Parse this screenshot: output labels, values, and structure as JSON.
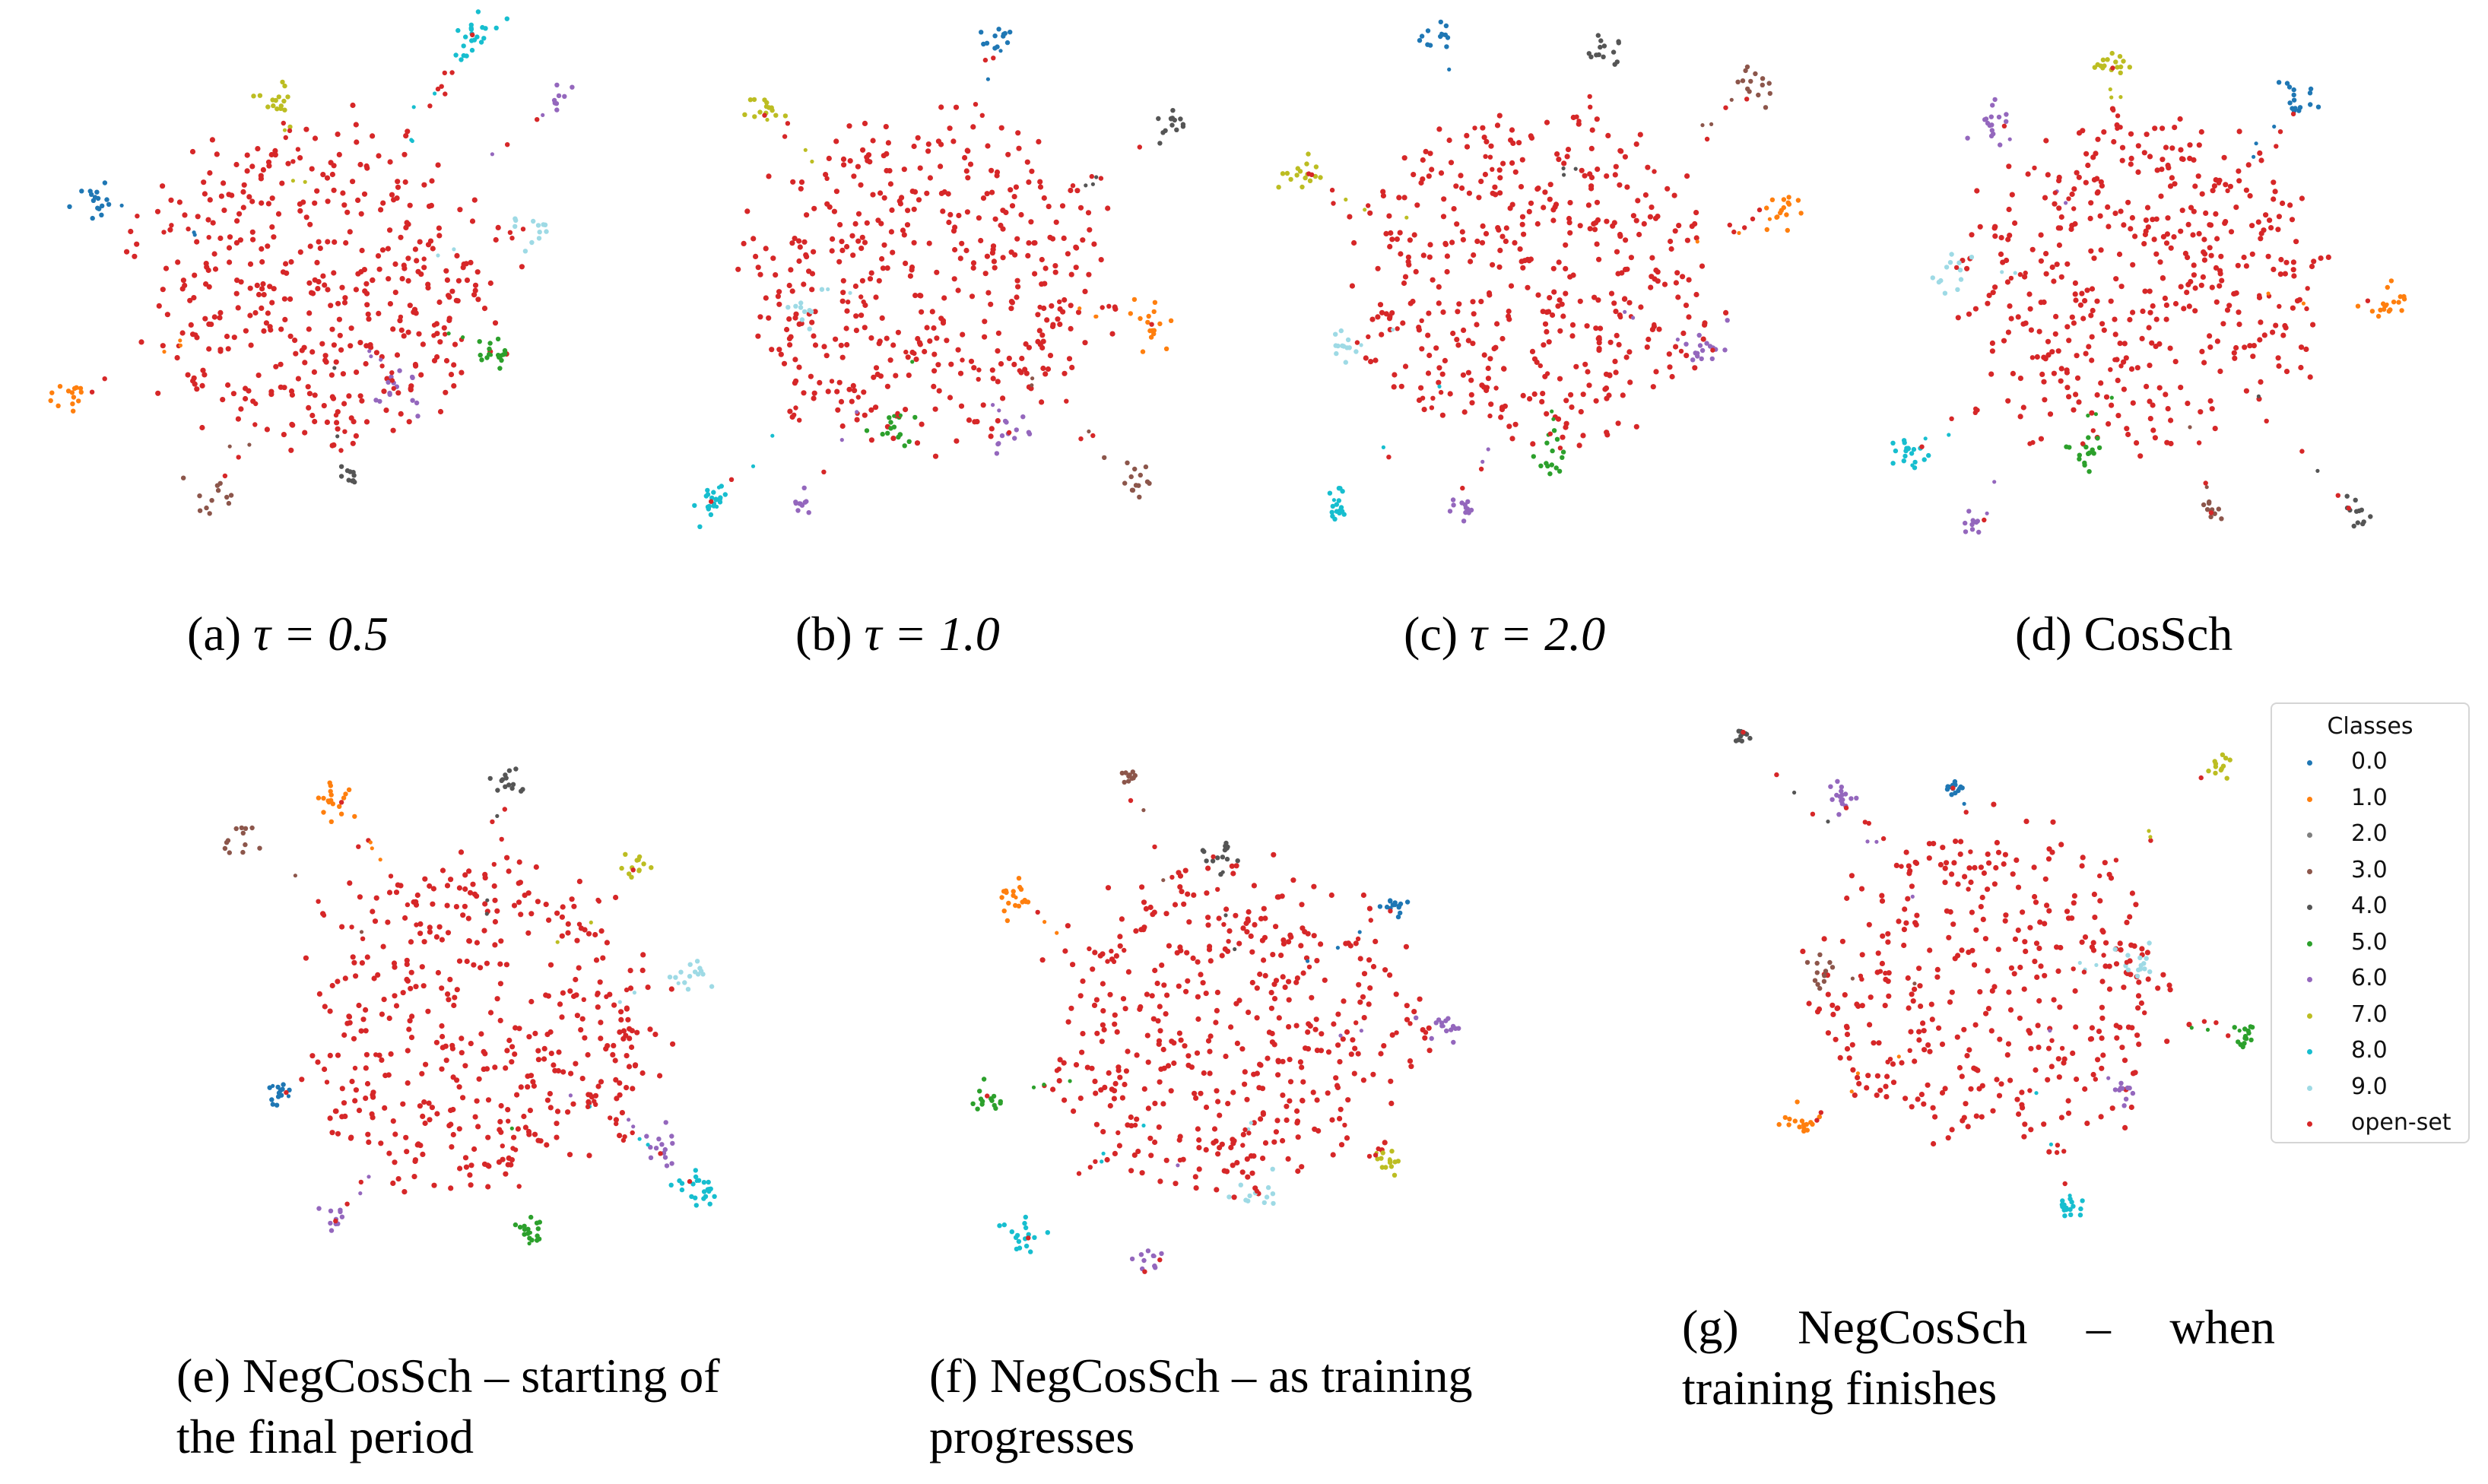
{
  "captions": {
    "a": {
      "prefix": "(a) ",
      "expr": "τ = 0.5"
    },
    "b": {
      "prefix": "(b) ",
      "expr": "τ = 1.0"
    },
    "c": {
      "prefix": "(c) ",
      "expr": "τ = 2.0"
    },
    "d": {
      "prefix": "(d) CosSch",
      "expr": ""
    },
    "e": {
      "line1": "(e) NegCosSch – starting of",
      "line2": "the final period"
    },
    "f": {
      "line1": "(f) NegCosSch – as training",
      "line2": "progresses"
    },
    "g": {
      "line1": "(g) NegCosSch – when",
      "line2": "training finishes"
    }
  },
  "legend": {
    "title": "Classes",
    "items": [
      {
        "label": "0.0",
        "color": "#1f77b4"
      },
      {
        "label": "1.0",
        "color": "#ff7f0e"
      },
      {
        "label": "2.0",
        "color": "#7f7f7f"
      },
      {
        "label": "3.0",
        "color": "#8c564b"
      },
      {
        "label": "4.0",
        "color": "#555555"
      },
      {
        "label": "5.0",
        "color": "#2ca02c"
      },
      {
        "label": "6.0",
        "color": "#9467bd"
      },
      {
        "label": "7.0",
        "color": "#bcbd22"
      },
      {
        "label": "8.0",
        "color": "#17becf"
      },
      {
        "label": "9.0",
        "color": "#9edae5"
      },
      {
        "label": "open-set",
        "color": "#d62728"
      }
    ]
  },
  "chart_data": [
    {
      "type": "scatter",
      "id": "a",
      "openset_count": 420,
      "clusters": [
        {
          "cls": "8.0",
          "x": 0.8,
          "y": 0.03,
          "spread": 0.035,
          "n": 22
        },
        {
          "cls": "7.0",
          "x": 0.42,
          "y": 0.15,
          "spread": 0.035,
          "n": 16
        },
        {
          "cls": "6.0",
          "x": 0.96,
          "y": 0.15,
          "spread": 0.02,
          "n": 8
        },
        {
          "cls": "0.0",
          "x": 0.07,
          "y": 0.34,
          "spread": 0.03,
          "n": 16
        },
        {
          "cls": "9.0",
          "x": 0.92,
          "y": 0.4,
          "spread": 0.035,
          "n": 12
        },
        {
          "cls": "5.0",
          "x": 0.83,
          "y": 0.64,
          "spread": 0.03,
          "n": 16
        },
        {
          "cls": "1.0",
          "x": 0.02,
          "y": 0.72,
          "spread": 0.03,
          "n": 14
        },
        {
          "cls": "6.0",
          "x": 0.66,
          "y": 0.72,
          "spread": 0.04,
          "n": 14
        },
        {
          "cls": "3.0",
          "x": 0.3,
          "y": 0.92,
          "spread": 0.04,
          "n": 12
        },
        {
          "cls": "4.0",
          "x": 0.56,
          "y": 0.87,
          "spread": 0.02,
          "n": 10
        }
      ]
    },
    {
      "type": "scatter",
      "id": "b",
      "openset_count": 420,
      "clusters": [
        {
          "cls": "0.0",
          "x": 0.64,
          "y": 0.03,
          "spread": 0.02,
          "n": 12
        },
        {
          "cls": "7.0",
          "x": 0.18,
          "y": 0.16,
          "spread": 0.03,
          "n": 14
        },
        {
          "cls": "4.0",
          "x": 0.97,
          "y": 0.2,
          "spread": 0.03,
          "n": 14
        },
        {
          "cls": "9.0",
          "x": 0.26,
          "y": 0.55,
          "spread": 0.03,
          "n": 10
        },
        {
          "cls": "1.0",
          "x": 0.93,
          "y": 0.58,
          "spread": 0.035,
          "n": 16
        },
        {
          "cls": "5.0",
          "x": 0.44,
          "y": 0.78,
          "spread": 0.03,
          "n": 14
        },
        {
          "cls": "6.0",
          "x": 0.66,
          "y": 0.8,
          "spread": 0.03,
          "n": 12
        },
        {
          "cls": "3.0",
          "x": 0.89,
          "y": 0.87,
          "spread": 0.04,
          "n": 14
        },
        {
          "cls": "8.0",
          "x": 0.08,
          "y": 0.93,
          "spread": 0.035,
          "n": 20
        },
        {
          "cls": "6.0",
          "x": 0.26,
          "y": 0.93,
          "spread": 0.02,
          "n": 10
        }
      ]
    },
    {
      "type": "scatter",
      "id": "c",
      "openset_count": 420,
      "clusters": [
        {
          "cls": "0.0",
          "x": 0.31,
          "y": 0.03,
          "spread": 0.025,
          "n": 12
        },
        {
          "cls": "4.0",
          "x": 0.63,
          "y": 0.05,
          "spread": 0.03,
          "n": 14
        },
        {
          "cls": "3.0",
          "x": 0.92,
          "y": 0.13,
          "spread": 0.04,
          "n": 14
        },
        {
          "cls": "7.0",
          "x": 0.04,
          "y": 0.3,
          "spread": 0.035,
          "n": 16
        },
        {
          "cls": "1.0",
          "x": 0.97,
          "y": 0.37,
          "spread": 0.035,
          "n": 16
        },
        {
          "cls": "9.0",
          "x": 0.13,
          "y": 0.62,
          "spread": 0.03,
          "n": 12
        },
        {
          "cls": "6.0",
          "x": 0.83,
          "y": 0.63,
          "spread": 0.035,
          "n": 16
        },
        {
          "cls": "5.0",
          "x": 0.53,
          "y": 0.84,
          "spread": 0.03,
          "n": 14
        },
        {
          "cls": "8.0",
          "x": 0.11,
          "y": 0.94,
          "spread": 0.03,
          "n": 16
        },
        {
          "cls": "6.0",
          "x": 0.36,
          "y": 0.94,
          "spread": 0.025,
          "n": 12
        }
      ]
    },
    {
      "type": "scatter",
      "id": "d",
      "openset_count": 420,
      "clusters": [
        {
          "cls": "7.0",
          "x": 0.43,
          "y": 0.08,
          "spread": 0.03,
          "n": 16
        },
        {
          "cls": "6.0",
          "x": 0.21,
          "y": 0.19,
          "spread": 0.035,
          "n": 16
        },
        {
          "cls": "0.0",
          "x": 0.8,
          "y": 0.15,
          "spread": 0.03,
          "n": 16
        },
        {
          "cls": "9.0",
          "x": 0.13,
          "y": 0.48,
          "spread": 0.03,
          "n": 12
        },
        {
          "cls": "1.0",
          "x": 0.97,
          "y": 0.55,
          "spread": 0.035,
          "n": 18
        },
        {
          "cls": "8.0",
          "x": 0.04,
          "y": 0.84,
          "spread": 0.03,
          "n": 18
        },
        {
          "cls": "5.0",
          "x": 0.38,
          "y": 0.83,
          "spread": 0.03,
          "n": 16
        },
        {
          "cls": "6.0",
          "x": 0.17,
          "y": 0.97,
          "spread": 0.02,
          "n": 10
        },
        {
          "cls": "3.0",
          "x": 0.63,
          "y": 0.94,
          "spread": 0.02,
          "n": 10
        },
        {
          "cls": "4.0",
          "x": 0.91,
          "y": 0.95,
          "spread": 0.025,
          "n": 12
        }
      ]
    },
    {
      "type": "scatter",
      "id": "e",
      "openset_count": 420,
      "clusters": [
        {
          "cls": "1.0",
          "x": 0.23,
          "y": 0.06,
          "spread": 0.03,
          "n": 18
        },
        {
          "cls": "4.0",
          "x": 0.55,
          "y": 0.03,
          "spread": 0.03,
          "n": 14
        },
        {
          "cls": "3.0",
          "x": 0.04,
          "y": 0.14,
          "spread": 0.03,
          "n": 12
        },
        {
          "cls": "7.0",
          "x": 0.81,
          "y": 0.19,
          "spread": 0.025,
          "n": 12
        },
        {
          "cls": "9.0",
          "x": 0.91,
          "y": 0.41,
          "spread": 0.035,
          "n": 14
        },
        {
          "cls": "0.0",
          "x": 0.11,
          "y": 0.63,
          "spread": 0.02,
          "n": 12
        },
        {
          "cls": "6.0",
          "x": 0.86,
          "y": 0.74,
          "spread": 0.035,
          "n": 14
        },
        {
          "cls": "6.0",
          "x": 0.22,
          "y": 0.88,
          "spread": 0.02,
          "n": 10
        },
        {
          "cls": "5.0",
          "x": 0.6,
          "y": 0.9,
          "spread": 0.03,
          "n": 16
        },
        {
          "cls": "8.0",
          "x": 0.93,
          "y": 0.81,
          "spread": 0.035,
          "n": 22
        }
      ]
    },
    {
      "type": "scatter",
      "id": "f",
      "openset_count": 420,
      "clusters": [
        {
          "cls": "3.0",
          "x": 0.3,
          "y": 0.02,
          "spread": 0.015,
          "n": 10
        },
        {
          "cls": "4.0",
          "x": 0.48,
          "y": 0.17,
          "spread": 0.03,
          "n": 14
        },
        {
          "cls": "1.0",
          "x": 0.08,
          "y": 0.26,
          "spread": 0.035,
          "n": 18
        },
        {
          "cls": "0.0",
          "x": 0.81,
          "y": 0.27,
          "spread": 0.025,
          "n": 14
        },
        {
          "cls": "6.0",
          "x": 0.92,
          "y": 0.5,
          "spread": 0.03,
          "n": 14
        },
        {
          "cls": "5.0",
          "x": 0.03,
          "y": 0.64,
          "spread": 0.025,
          "n": 14
        },
        {
          "cls": "7.0",
          "x": 0.81,
          "y": 0.77,
          "spread": 0.025,
          "n": 12
        },
        {
          "cls": "9.0",
          "x": 0.54,
          "y": 0.82,
          "spread": 0.03,
          "n": 12
        },
        {
          "cls": "8.0",
          "x": 0.1,
          "y": 0.9,
          "spread": 0.03,
          "n": 18
        },
        {
          "cls": "6.0",
          "x": 0.34,
          "y": 0.96,
          "spread": 0.02,
          "n": 10
        }
      ]
    },
    {
      "type": "scatter",
      "id": "g",
      "openset_count": 360,
      "clusters": [
        {
          "cls": "4.0",
          "x": 0.01,
          "y": 0.01,
          "spread": 0.015,
          "n": 10
        },
        {
          "cls": "6.0",
          "x": 0.21,
          "y": 0.13,
          "spread": 0.02,
          "n": 16
        },
        {
          "cls": "0.0",
          "x": 0.43,
          "y": 0.11,
          "spread": 0.02,
          "n": 12
        },
        {
          "cls": "7.0",
          "x": 0.94,
          "y": 0.07,
          "spread": 0.02,
          "n": 12
        },
        {
          "cls": "9.0",
          "x": 0.78,
          "y": 0.44,
          "spread": 0.03,
          "n": 14
        },
        {
          "cls": "3.0",
          "x": 0.16,
          "y": 0.47,
          "spread": 0.025,
          "n": 12
        },
        {
          "cls": "5.0",
          "x": 0.99,
          "y": 0.59,
          "spread": 0.02,
          "n": 14
        },
        {
          "cls": "1.0",
          "x": 0.13,
          "y": 0.76,
          "spread": 0.03,
          "n": 16
        },
        {
          "cls": "6.0",
          "x": 0.75,
          "y": 0.7,
          "spread": 0.02,
          "n": 10
        },
        {
          "cls": "8.0",
          "x": 0.65,
          "y": 0.92,
          "spread": 0.025,
          "n": 16
        }
      ]
    }
  ]
}
